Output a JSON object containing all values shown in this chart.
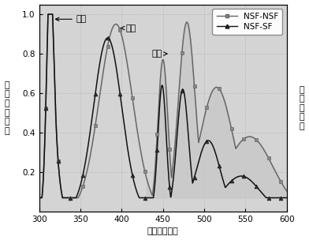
{
  "xlabel": "波长（纳米）",
  "ylabel_left": "紫\n外\n吸\n收\n强\n度",
  "ylabel_right": "发\n射\n光\n强\n度",
  "annotation_uv": "紫外",
  "annotation_fl": "荧光",
  "annotation_ph": "磷光",
  "legend1": "NSF-NSF",
  "legend2": "NSF-SF",
  "xlim": [
    300,
    600
  ],
  "ylim": [
    0.0,
    1.05
  ],
  "xticks": [
    300,
    350,
    400,
    450,
    500,
    550,
    600
  ],
  "yticks": [
    0.2,
    0.4,
    0.6,
    0.8,
    1.0
  ],
  "bg_color": "#d4d4d4",
  "fill_color": "#c8c8c8",
  "line1_color": "#666666",
  "line2_color": "#111111"
}
